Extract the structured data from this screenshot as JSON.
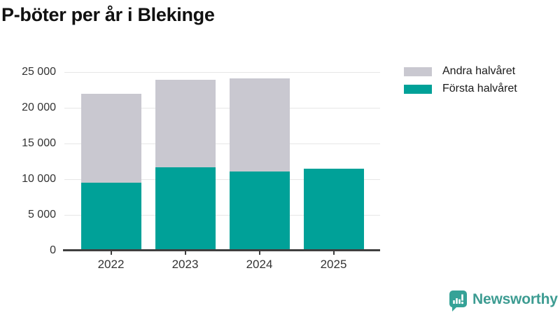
{
  "chart_data": {
    "type": "bar",
    "stacked": true,
    "title": "P-böter per år i Blekinge",
    "categories": [
      "2022",
      "2023",
      "2024",
      "2025"
    ],
    "series": [
      {
        "name": "Första halvåret",
        "color": "#00a198",
        "values": [
          9500,
          11700,
          11100,
          11500
        ]
      },
      {
        "name": "Andra halvåret",
        "color": "#c9c8d0",
        "values": [
          12500,
          12200,
          13000,
          0
        ]
      }
    ],
    "totals": [
      22000,
      23900,
      24100,
      11500
    ],
    "ylim": [
      0,
      25000
    ],
    "ytick_step": 5000,
    "ytick_labels": [
      "0",
      "5 000",
      "10 000",
      "15 000",
      "20 000",
      "25 000"
    ],
    "grid": true,
    "legend_position": "top-right",
    "legend_order": [
      "Andra halvåret",
      "Första halvåret"
    ]
  },
  "footer": {
    "brand": "Newsworthy"
  },
  "colors": {
    "first_half_teal": "#00a198",
    "second_half_gray": "#c9c8d0",
    "axis": "#3f3f3f",
    "grid": "#e6e6e6",
    "tick_text": "#333333",
    "title_text": "#111111",
    "brand_teal": "#3d9c92"
  }
}
